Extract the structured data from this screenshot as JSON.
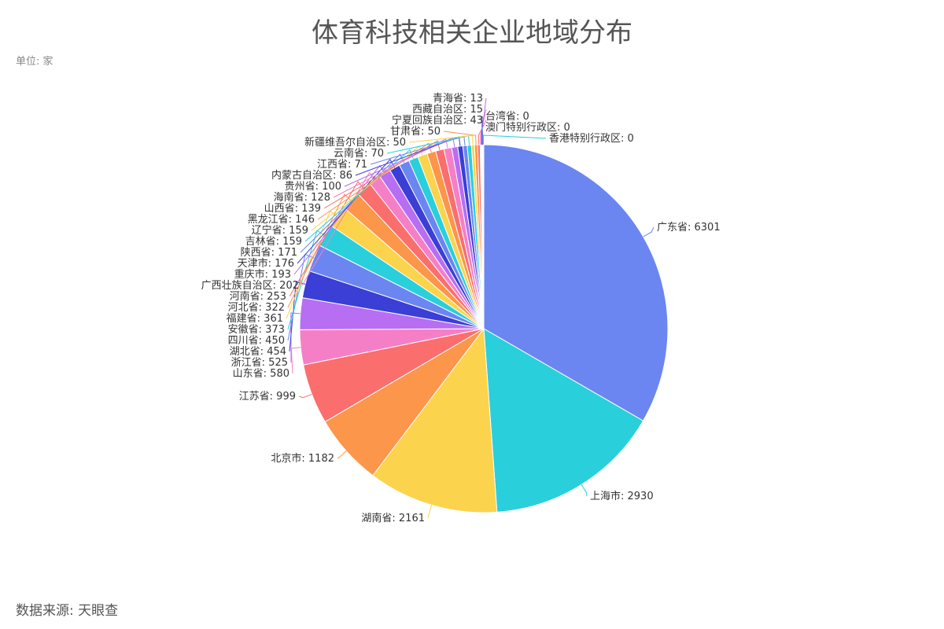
{
  "chart_data": {
    "type": "pie",
    "title": "体育科技相关企业地域分布",
    "unit_label": "单位: 家",
    "source_label": "数据来源: 天眼查",
    "label_separator": ": ",
    "categories": [
      "广东省",
      "上海市",
      "湖南省",
      "北京市",
      "江苏省",
      "山东省",
      "浙江省",
      "湖北省",
      "四川省",
      "安徽省",
      "福建省",
      "河北省",
      "河南省",
      "广西壮族自治区",
      "重庆市",
      "天津市",
      "陕西省",
      "吉林省",
      "辽宁省",
      "黑龙江省",
      "山西省",
      "海南省",
      "贵州省",
      "内蒙古自治区",
      "江西省",
      "云南省",
      "新疆维吾尔自治区",
      "甘肃省",
      "宁夏回族自治区",
      "西藏自治区",
      "青海省",
      "台湾省",
      "澳门特别行政区",
      "香港特别行政区"
    ],
    "values": [
      6301,
      2930,
      2161,
      1182,
      999,
      580,
      525,
      454,
      450,
      373,
      361,
      322,
      253,
      202,
      193,
      176,
      171,
      159,
      159,
      146,
      139,
      128,
      100,
      86,
      71,
      70,
      50,
      50,
      43,
      15,
      13,
      0,
      0,
      0
    ],
    "colors": [
      "#6b86f0",
      "#29cfdb",
      "#fcd34d",
      "#fb964a",
      "#fb6e6e",
      "#f57fc6",
      "#b76ef2",
      "#3b3fd6",
      "#6b86f0",
      "#29cfdb",
      "#fcd34d",
      "#fb964a",
      "#fb6e6e",
      "#f57fc6",
      "#b76ef2",
      "#3b3fd6",
      "#6b86f0",
      "#29cfdb",
      "#fcd34d",
      "#fb964a",
      "#fb6e6e",
      "#f57fc6",
      "#b76ef2",
      "#3b3fd6",
      "#6b86f0",
      "#29cfdb",
      "#fcd34d",
      "#fb964a",
      "#fb6e6e",
      "#f57fc6",
      "#b76ef2",
      "#3b3fd6",
      "#6b86f0",
      "#29cfdb"
    ]
  }
}
